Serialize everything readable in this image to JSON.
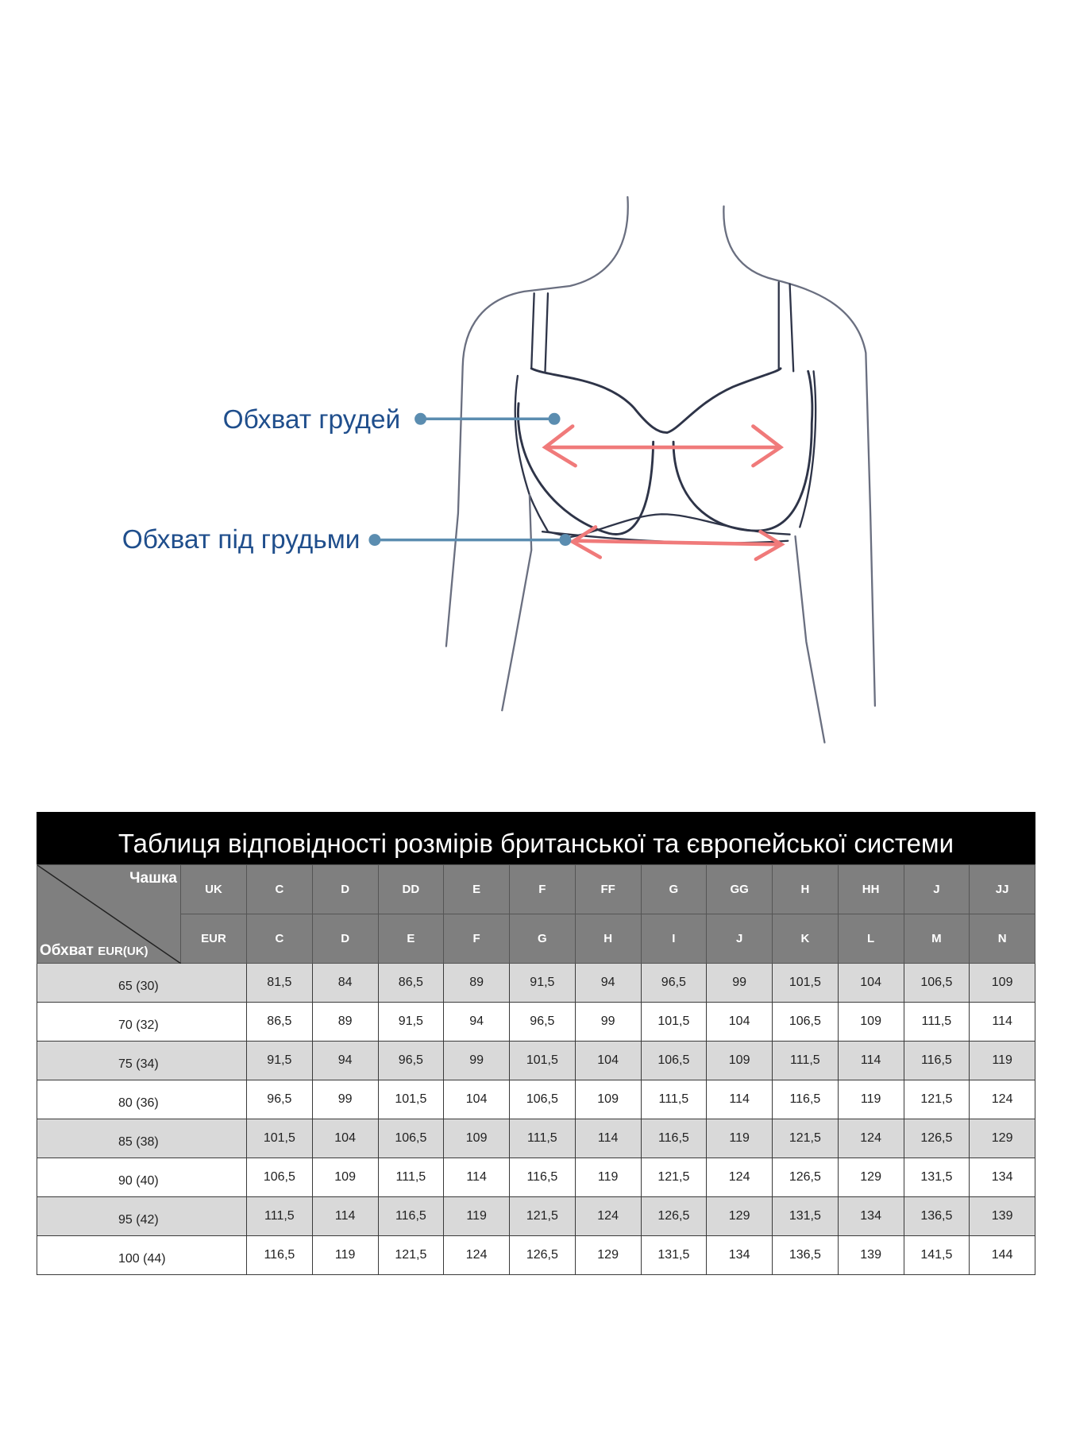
{
  "figure": {
    "label_bust": "Обхват грудей",
    "label_underbust": "Обхват під грудьми",
    "colors": {
      "label": "#1f4e8c",
      "pointer": "#5b8db0",
      "arrow": "#f07a7a",
      "outline": "#2e3448"
    }
  },
  "table": {
    "title": "Таблиця відповідності розмірів британської та європейської системи",
    "corner_top": "Чашка",
    "corner_bottom": "Обхват",
    "corner_bottom_small": "EUR(UK)",
    "uk_label": "UK",
    "eur_label": "EUR",
    "uk_cups": [
      "C",
      "D",
      "DD",
      "E",
      "F",
      "FF",
      "G",
      "GG",
      "H",
      "HH",
      "J",
      "JJ"
    ],
    "eur_cups": [
      "C",
      "D",
      "E",
      "F",
      "G",
      "H",
      "I",
      "J",
      "K",
      "L",
      "M",
      "N"
    ],
    "rows": [
      {
        "band": "65 (30)",
        "values": [
          "81,5",
          "84",
          "86,5",
          "89",
          "91,5",
          "94",
          "96,5",
          "99",
          "101,5",
          "104",
          "106,5",
          "109"
        ]
      },
      {
        "band": "70 (32)",
        "values": [
          "86,5",
          "89",
          "91,5",
          "94",
          "96,5",
          "99",
          "101,5",
          "104",
          "106,5",
          "109",
          "111,5",
          "114"
        ]
      },
      {
        "band": "75 (34)",
        "values": [
          "91,5",
          "94",
          "96,5",
          "99",
          "101,5",
          "104",
          "106,5",
          "109",
          "111,5",
          "114",
          "116,5",
          "119"
        ]
      },
      {
        "band": "80 (36)",
        "values": [
          "96,5",
          "99",
          "101,5",
          "104",
          "106,5",
          "109",
          "111,5",
          "114",
          "116,5",
          "119",
          "121,5",
          "124"
        ]
      },
      {
        "band": "85 (38)",
        "values": [
          "101,5",
          "104",
          "106,5",
          "109",
          "111,5",
          "114",
          "116,5",
          "119",
          "121,5",
          "124",
          "126,5",
          "129"
        ]
      },
      {
        "band": "90 (40)",
        "values": [
          "106,5",
          "109",
          "111,5",
          "114",
          "116,5",
          "119",
          "121,5",
          "124",
          "126,5",
          "129",
          "131,5",
          "134"
        ]
      },
      {
        "band": "95 (42)",
        "values": [
          "111,5",
          "114",
          "116,5",
          "119",
          "121,5",
          "124",
          "126,5",
          "129",
          "131,5",
          "134",
          "136,5",
          "139"
        ]
      },
      {
        "band": "100 (44)",
        "values": [
          "116,5",
          "119",
          "121,5",
          "124",
          "126,5",
          "129",
          "131,5",
          "134",
          "136,5",
          "139",
          "141,5",
          "144"
        ]
      }
    ],
    "colors": {
      "title_bg": "#000000",
      "header_bg": "#7f7f7f",
      "stripe": "#d9d9d9"
    }
  }
}
